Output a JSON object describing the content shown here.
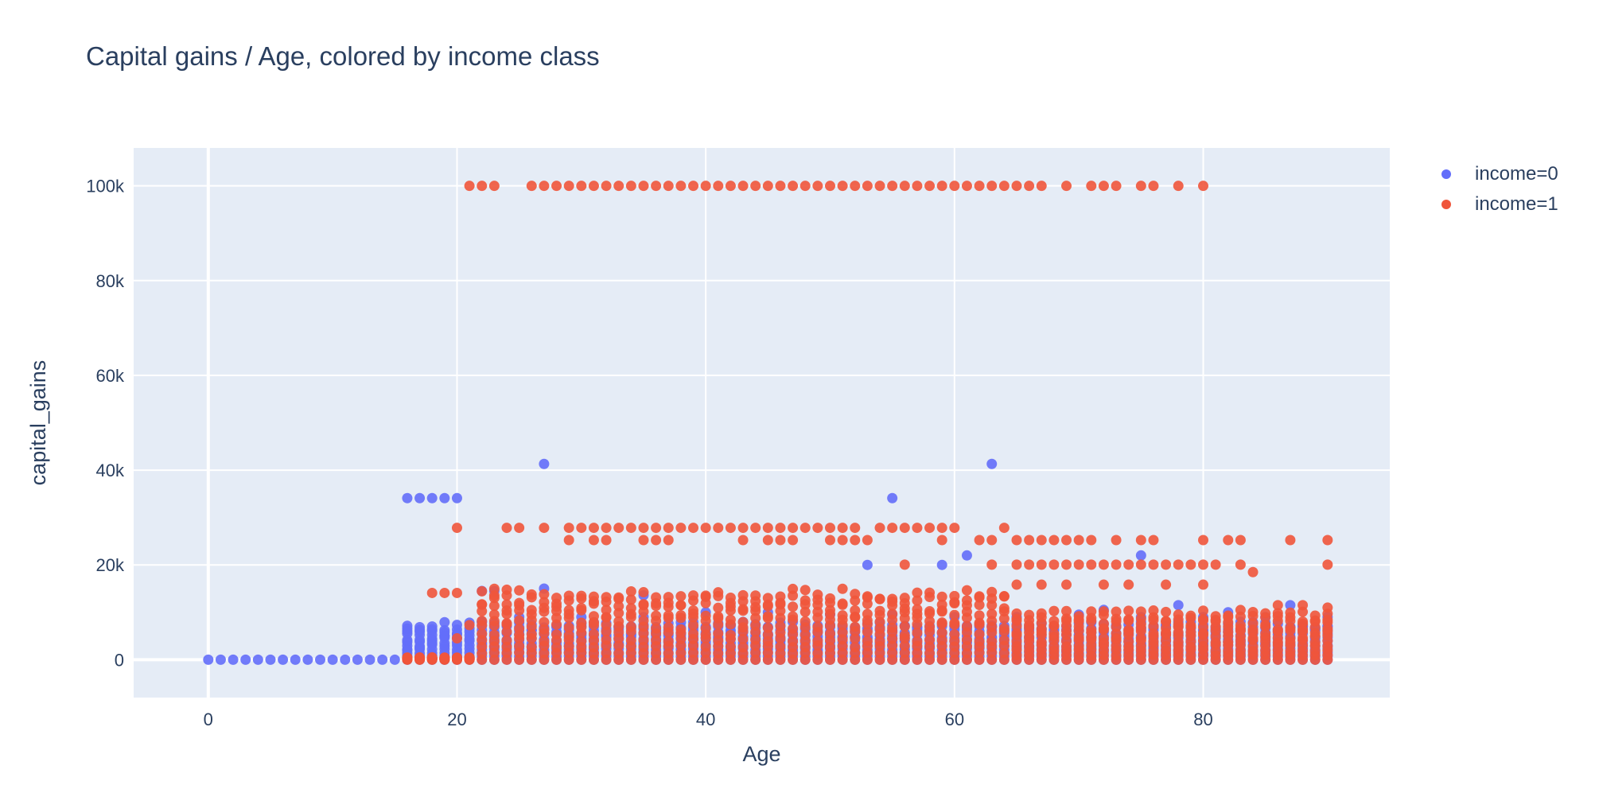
{
  "chart_data": {
    "type": "scatter",
    "title": "Capital gains / Age, colored by income class",
    "xlabel": "Age",
    "ylabel": "capital_gains",
    "xlim": [
      -6,
      95
    ],
    "ylim": [
      -8000,
      108000
    ],
    "xticks": [
      0,
      20,
      40,
      60,
      80
    ],
    "xtick_labels": [
      "0",
      "20",
      "40",
      "60",
      "80"
    ],
    "yticks": [
      0,
      20000,
      40000,
      60000,
      80000,
      100000
    ],
    "ytick_labels": [
      "0",
      "20k",
      "40k",
      "60k",
      "80k",
      "100k"
    ],
    "grid": true,
    "legend_position": "top-right",
    "series": [
      {
        "name": "income=0",
        "color": "#636efa",
        "points": [
          [
            0,
            0
          ],
          [
            1,
            0
          ],
          [
            2,
            0
          ],
          [
            3,
            0
          ],
          [
            4,
            0
          ],
          [
            5,
            0
          ],
          [
            6,
            0
          ],
          [
            7,
            0
          ],
          [
            8,
            0
          ],
          [
            9,
            0
          ],
          [
            10,
            0
          ],
          [
            11,
            0
          ],
          [
            12,
            0
          ],
          [
            13,
            0
          ],
          [
            14,
            0
          ],
          [
            15,
            0
          ],
          [
            16,
            34095
          ],
          [
            17,
            34095
          ],
          [
            18,
            34095
          ],
          [
            19,
            34095
          ],
          [
            20,
            34095
          ],
          [
            27,
            41310
          ],
          [
            63,
            41310
          ],
          [
            55,
            34095
          ],
          [
            16,
            2000
          ],
          [
            17,
            2500
          ],
          [
            18,
            4000
          ],
          [
            19,
            5000
          ],
          [
            20,
            4500
          ],
          [
            22,
            14500
          ],
          [
            23,
            14500
          ],
          [
            27,
            15000
          ],
          [
            35,
            13600
          ],
          [
            53,
            20000
          ],
          [
            59,
            20000
          ],
          [
            61,
            22000
          ],
          [
            75,
            22000
          ],
          [
            87,
            11500
          ],
          [
            88,
            7000
          ],
          [
            89,
            6500
          ],
          [
            90,
            9000
          ],
          [
            22,
            8000
          ],
          [
            25,
            9000
          ],
          [
            30,
            9000
          ],
          [
            35,
            9000
          ],
          [
            40,
            10000
          ],
          [
            45,
            10000
          ],
          [
            50,
            9500
          ],
          [
            55,
            9500
          ],
          [
            60,
            9000
          ],
          [
            65,
            9000
          ],
          [
            70,
            9500
          ],
          [
            75,
            9000
          ],
          [
            80,
            9000
          ],
          [
            82,
            10000
          ],
          [
            85,
            9000
          ],
          [
            78,
            11500
          ],
          [
            72,
            10500
          ]
        ],
        "bands": [
          {
            "x_start": 16,
            "x_end": 90,
            "y_min": 0,
            "y_max": 8000
          }
        ]
      },
      {
        "name": "income=1",
        "color": "#ef553b",
        "points": [
          [
            21,
            99999
          ],
          [
            22,
            99999
          ],
          [
            23,
            99999
          ],
          [
            26,
            99999
          ],
          [
            27,
            99999
          ],
          [
            28,
            99999
          ],
          [
            29,
            99999
          ],
          [
            30,
            99999
          ],
          [
            31,
            99999
          ],
          [
            32,
            99999
          ],
          [
            33,
            99999
          ],
          [
            34,
            99999
          ],
          [
            35,
            99999
          ],
          [
            36,
            99999
          ],
          [
            37,
            99999
          ],
          [
            38,
            99999
          ],
          [
            39,
            99999
          ],
          [
            40,
            99999
          ],
          [
            41,
            99999
          ],
          [
            42,
            99999
          ],
          [
            43,
            99999
          ],
          [
            44,
            99999
          ],
          [
            45,
            99999
          ],
          [
            46,
            99999
          ],
          [
            47,
            99999
          ],
          [
            48,
            99999
          ],
          [
            49,
            99999
          ],
          [
            50,
            99999
          ],
          [
            51,
            99999
          ],
          [
            52,
            99999
          ],
          [
            53,
            99999
          ],
          [
            54,
            99999
          ],
          [
            55,
            99999
          ],
          [
            56,
            99999
          ],
          [
            57,
            99999
          ],
          [
            58,
            99999
          ],
          [
            59,
            99999
          ],
          [
            60,
            99999
          ],
          [
            61,
            99999
          ],
          [
            62,
            99999
          ],
          [
            63,
            99999
          ],
          [
            64,
            99999
          ],
          [
            65,
            99999
          ],
          [
            66,
            99999
          ],
          [
            67,
            99999
          ],
          [
            69,
            99999
          ],
          [
            71,
            99999
          ],
          [
            72,
            99999
          ],
          [
            73,
            99999
          ],
          [
            75,
            99999
          ],
          [
            76,
            99999
          ],
          [
            78,
            99999
          ],
          [
            80,
            99999
          ],
          [
            20,
            27828
          ],
          [
            24,
            27828
          ],
          [
            25,
            27828
          ],
          [
            27,
            27828
          ],
          [
            29,
            27828
          ],
          [
            30,
            27828
          ],
          [
            31,
            27828
          ],
          [
            32,
            27828
          ],
          [
            33,
            27828
          ],
          [
            34,
            27828
          ],
          [
            35,
            27828
          ],
          [
            36,
            27828
          ],
          [
            37,
            27828
          ],
          [
            38,
            27828
          ],
          [
            39,
            27828
          ],
          [
            40,
            27828
          ],
          [
            41,
            27828
          ],
          [
            42,
            27828
          ],
          [
            43,
            27828
          ],
          [
            44,
            27828
          ],
          [
            45,
            27828
          ],
          [
            46,
            27828
          ],
          [
            47,
            27828
          ],
          [
            48,
            27828
          ],
          [
            49,
            27828
          ],
          [
            50,
            27828
          ],
          [
            51,
            27828
          ],
          [
            52,
            27828
          ],
          [
            54,
            27828
          ],
          [
            55,
            27828
          ],
          [
            56,
            27828
          ],
          [
            57,
            27828
          ],
          [
            58,
            27828
          ],
          [
            59,
            27828
          ],
          [
            60,
            27828
          ],
          [
            64,
            27828
          ],
          [
            29,
            25236
          ],
          [
            31,
            25236
          ],
          [
            32,
            25236
          ],
          [
            35,
            25236
          ],
          [
            36,
            25236
          ],
          [
            37,
            25236
          ],
          [
            43,
            25236
          ],
          [
            45,
            25236
          ],
          [
            46,
            25236
          ],
          [
            47,
            25236
          ],
          [
            50,
            25236
          ],
          [
            51,
            25236
          ],
          [
            52,
            25236
          ],
          [
            53,
            25236
          ],
          [
            59,
            25236
          ],
          [
            62,
            25236
          ],
          [
            63,
            25236
          ],
          [
            65,
            25236
          ],
          [
            66,
            25236
          ],
          [
            67,
            25236
          ],
          [
            68,
            25236
          ],
          [
            69,
            25236
          ],
          [
            70,
            25236
          ],
          [
            71,
            25236
          ],
          [
            73,
            25236
          ],
          [
            75,
            25236
          ],
          [
            76,
            25236
          ],
          [
            80,
            25236
          ],
          [
            82,
            25236
          ],
          [
            83,
            25236
          ],
          [
            87,
            25236
          ],
          [
            90,
            25236
          ],
          [
            56,
            20051
          ],
          [
            63,
            20051
          ],
          [
            65,
            20051
          ],
          [
            66,
            20051
          ],
          [
            67,
            20051
          ],
          [
            68,
            20051
          ],
          [
            69,
            20051
          ],
          [
            70,
            20051
          ],
          [
            71,
            20051
          ],
          [
            72,
            20051
          ],
          [
            73,
            20051
          ],
          [
            74,
            20051
          ],
          [
            75,
            20051
          ],
          [
            76,
            20051
          ],
          [
            77,
            20051
          ],
          [
            78,
            20051
          ],
          [
            79,
            20051
          ],
          [
            80,
            20051
          ],
          [
            81,
            20051
          ],
          [
            83,
            20051
          ],
          [
            90,
            20051
          ],
          [
            84,
            18481
          ],
          [
            65,
            15831
          ],
          [
            67,
            15831
          ],
          [
            69,
            15831
          ],
          [
            72,
            15831
          ],
          [
            74,
            15831
          ],
          [
            77,
            15831
          ],
          [
            80,
            15831
          ],
          [
            18,
            14084
          ],
          [
            19,
            14084
          ],
          [
            20,
            14084
          ],
          [
            24,
            13550
          ],
          [
            23,
            13550
          ],
          [
            21,
            7298
          ],
          [
            20,
            4500
          ],
          [
            86,
            11500
          ],
          [
            88,
            11500
          ],
          [
            90,
            11000
          ]
        ],
        "bands": [
          {
            "x_start": 22,
            "x_end": 64,
            "y_min": 0,
            "y_max": 15024
          },
          {
            "x_start": 65,
            "x_end": 90,
            "y_min": 0,
            "y_max": 10500
          },
          {
            "x_start": 16,
            "x_end": 21,
            "y_min": 0,
            "y_max": 500
          }
        ]
      }
    ]
  }
}
